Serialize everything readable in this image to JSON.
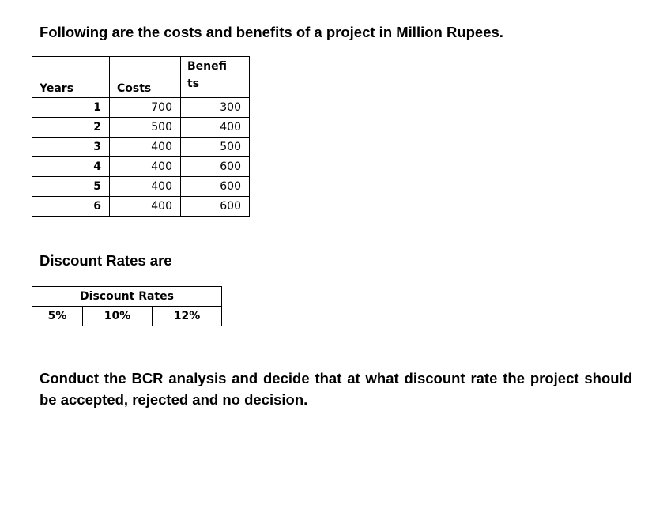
{
  "title": "Following are the costs and benefits of a project in Million Rupees.",
  "cost_table": {
    "headers": [
      "Years",
      "Costs",
      "Benefits"
    ],
    "rows": [
      {
        "year": "1",
        "cost": "700",
        "benefit": "300"
      },
      {
        "year": "2",
        "cost": "500",
        "benefit": "400"
      },
      {
        "year": "3",
        "cost": "400",
        "benefit": "500"
      },
      {
        "year": "4",
        "cost": "400",
        "benefit": "600"
      },
      {
        "year": "5",
        "cost": "400",
        "benefit": "600"
      },
      {
        "year": "6",
        "cost": "400",
        "benefit": "600"
      }
    ]
  },
  "discount_heading": "Discount Rates are",
  "rate_table": {
    "header": "Discount Rates",
    "rates": [
      "5%",
      "10%",
      "12%"
    ]
  },
  "question": "Conduct the BCR analysis and decide that at what discount rate the project should be accepted, rejected and no decision."
}
